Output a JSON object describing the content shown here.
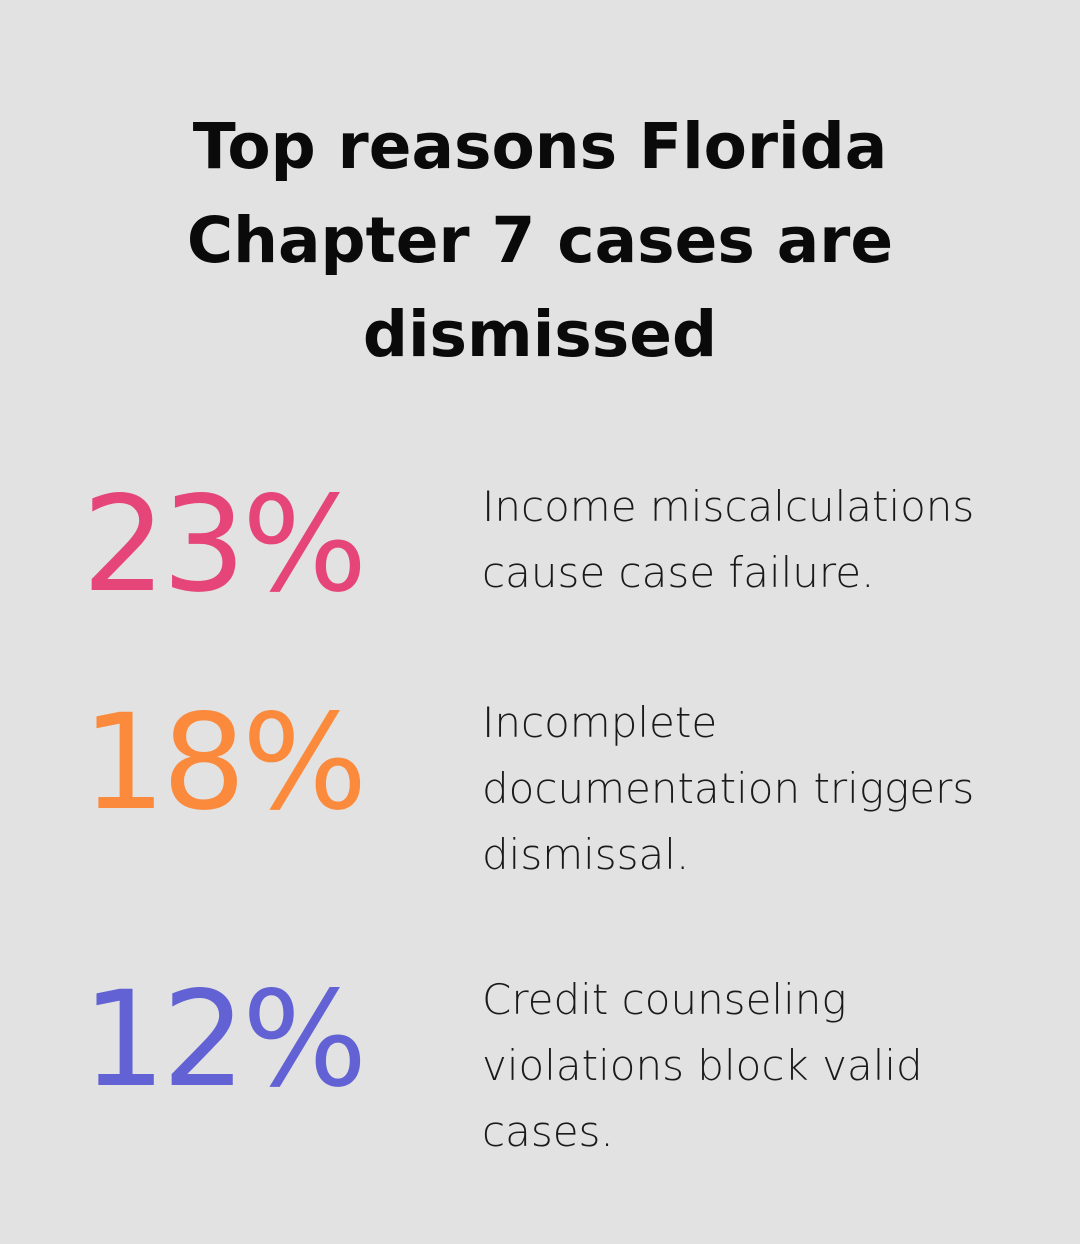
{
  "title": "Top reasons Florida Chapter 7 cases are dismissed",
  "stats": [
    {
      "value": "23%",
      "description": "Income miscalculations cause case failure.",
      "color": "#e6457a"
    },
    {
      "value": "18%",
      "description": "Incomplete documentation triggers dismissal.",
      "color": "#fb8a3c"
    },
    {
      "value": "12%",
      "description": "Credit counseling violations block valid cases.",
      "color": "#6262d5"
    }
  ]
}
